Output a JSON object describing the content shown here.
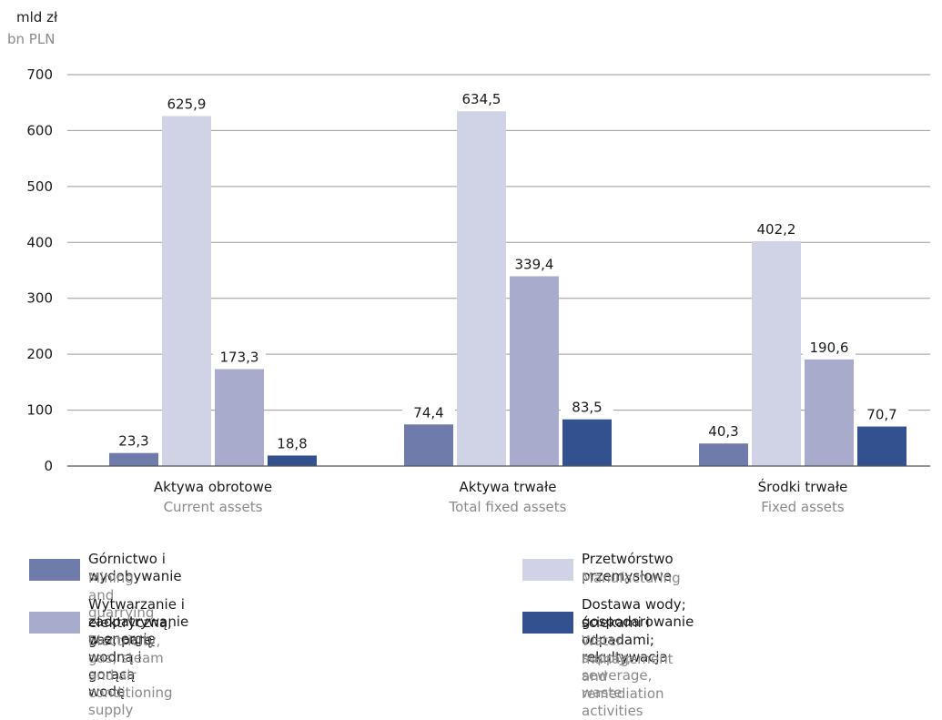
{
  "units": {
    "pl": "mld zł",
    "en": "bn PLN"
  },
  "colors": {
    "mining": "#6f7bab",
    "manufacturing": "#d0d3e6",
    "electricity": "#a8abcb",
    "water": "#34518f",
    "grid": "#9a9a9a",
    "label_en": "#8a8a8a"
  },
  "chart_data": {
    "type": "bar",
    "title": "",
    "ylim": [
      0,
      700
    ],
    "yticks": [
      "0",
      "100",
      "200",
      "300",
      "400",
      "500",
      "600",
      "700"
    ],
    "grid": true,
    "legend_placement": "bottom",
    "categories": [
      {
        "pl": "Aktywa obrotowe",
        "en": "Current assets"
      },
      {
        "pl": "Aktywa trwałe",
        "en": "Total fixed assets"
      },
      {
        "pl": "Środki trwałe",
        "en": "Fixed assets"
      }
    ],
    "series": [
      {
        "name_pl": "Górnictwo i wydobywanie",
        "name_en": "Mining and quarrying",
        "color": "#6f7bab",
        "values": [
          23.3,
          74.4,
          40.3
        ],
        "labels": [
          "23,3",
          "74,4",
          "40,3"
        ]
      },
      {
        "name_pl": "Przetwórstwo przemysłowe",
        "name_en": "Manufacturing",
        "color": "#d0d3e6",
        "values": [
          625.9,
          634.5,
          402.2
        ],
        "labels": [
          "625,9",
          "634,5",
          "402,2"
        ]
      },
      {
        "name_pl": "Wytwarzanie i zaopatrywanie w energię elektryczną, gaz, parę wodną i gorącą wodę",
        "name_pl_lines": [
          "Wytwarzanie i zaopatrywanie w energię",
          "elektryczną, gaz, parę wodną i gorącą wodę"
        ],
        "name_en": "Electricity, gas, steam and air conditioning supply",
        "color": "#a8abcb",
        "values": [
          173.3,
          339.4,
          190.6
        ],
        "labels": [
          "173,3",
          "339,4",
          "190,6"
        ]
      },
      {
        "name_pl": "Dostawa wody; gospodarowanie ściekami i odpadami; rekultywacja",
        "name_pl_lines": [
          "Dostawa wody; gospodarowanie",
          "ściekami i odpadami; rekultywacja"
        ],
        "name_en": "Water supply; sewerage, waste management and remediation activities",
        "name_en_lines": [
          "Water supply; sewerage, waste",
          "management and remediation activities"
        ],
        "color": "#34518f",
        "values": [
          18.8,
          83.5,
          70.7
        ],
        "labels": [
          "18,8",
          "83,5",
          "70,7"
        ]
      }
    ]
  }
}
